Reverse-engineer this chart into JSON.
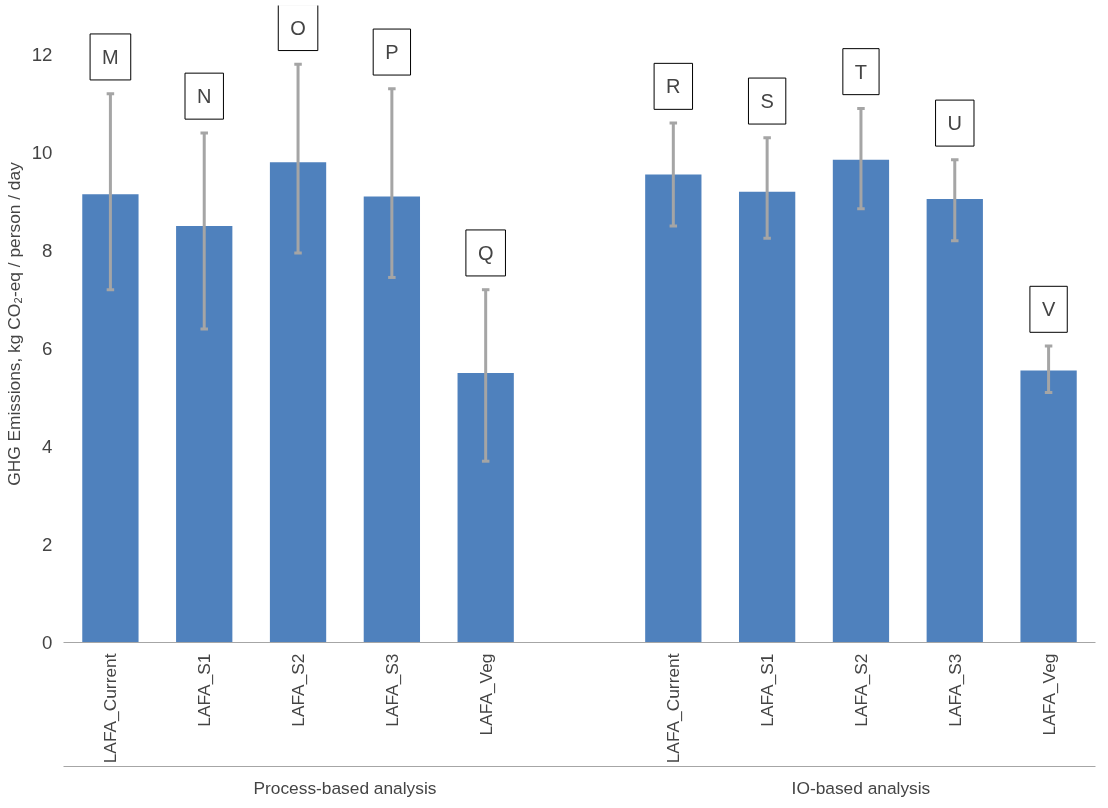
{
  "chart_data": {
    "type": "bar",
    "ylabel": "GHG Emissions, kg CO₂-eq / person / day",
    "categories": [
      "LAFA_Current",
      "LAFA_S1",
      "LAFA_S2",
      "LAFA_S3",
      "LAFA_Veg",
      null,
      "LAFA_Current",
      "LAFA_S1",
      "LAFA_S2",
      "LAFA_S3",
      "LAFA_Veg"
    ],
    "values": [
      9.15,
      8.5,
      9.8,
      9.1,
      5.5,
      null,
      9.55,
      9.2,
      9.85,
      9.05,
      5.55
    ],
    "errors": [
      [
        7.2,
        11.2
      ],
      [
        6.4,
        10.4
      ],
      [
        7.95,
        11.8
      ],
      [
        7.45,
        11.3
      ],
      [
        3.7,
        7.2
      ],
      null,
      [
        8.5,
        10.6
      ],
      [
        8.25,
        10.3
      ],
      [
        8.85,
        10.9
      ],
      [
        8.2,
        9.85
      ],
      [
        5.1,
        6.05
      ]
    ],
    "color": "#4f81bd",
    "ylim": [
      0,
      13
    ],
    "yticks": [
      0,
      2,
      4,
      6,
      8,
      10,
      12
    ],
    "grid": false,
    "annotations": [
      "M",
      "N",
      "O",
      "P",
      "Q",
      "R",
      "S",
      "T",
      "U",
      "V",
      "Process-based analysis",
      "IO-based analysis"
    ]
  }
}
